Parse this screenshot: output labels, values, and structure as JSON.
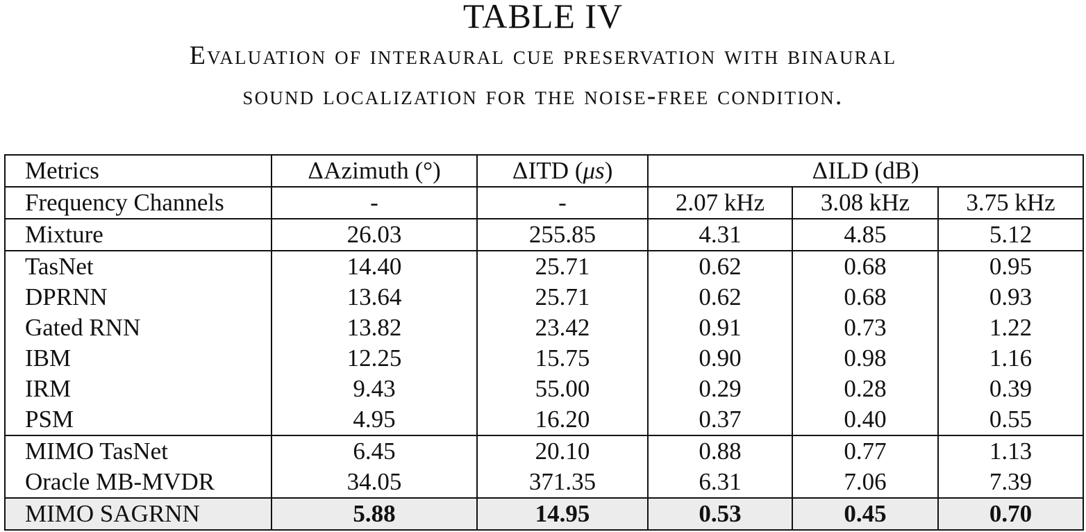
{
  "caption": {
    "title": "TABLE IV",
    "line1": "Evaluation of interaural cue preservation with binaural",
    "line2": "sound localization for the noise-free condition."
  },
  "table": {
    "header1": {
      "metrics": "Metrics",
      "azimuth_delta": "Δ",
      "azimuth": "Azimuth (°)",
      "itd_delta": "Δ",
      "itd_pre": "ITD (",
      "itd_unit": "μs",
      "itd_post": ")",
      "ild_delta": "Δ",
      "ild": "ILD (dB)"
    },
    "header2": {
      "label": "Frequency Channels",
      "azimuth": "-",
      "itd": "-",
      "f1": "2.07 kHz",
      "f2": "3.08 kHz",
      "f3": "3.75 kHz"
    },
    "rows": [
      {
        "name": "Mixture",
        "azimuth": "26.03",
        "itd": "255.85",
        "ild1": "4.31",
        "ild2": "4.85",
        "ild3": "5.12"
      },
      {
        "name": "TasNet",
        "azimuth": "14.40",
        "itd": "25.71",
        "ild1": "0.62",
        "ild2": "0.68",
        "ild3": "0.95"
      },
      {
        "name": "DPRNN",
        "azimuth": "13.64",
        "itd": "25.71",
        "ild1": "0.62",
        "ild2": "0.68",
        "ild3": "0.93"
      },
      {
        "name": "Gated RNN",
        "azimuth": "13.82",
        "itd": "23.42",
        "ild1": "0.91",
        "ild2": "0.73",
        "ild3": "1.22"
      },
      {
        "name": "IBM",
        "azimuth": "12.25",
        "itd": "15.75",
        "ild1": "0.90",
        "ild2": "0.98",
        "ild3": "1.16"
      },
      {
        "name": "IRM",
        "azimuth": "9.43",
        "itd": "55.00",
        "ild1": "0.29",
        "ild2": "0.28",
        "ild3": "0.39"
      },
      {
        "name": "PSM",
        "azimuth": "4.95",
        "itd": "16.20",
        "ild1": "0.37",
        "ild2": "0.40",
        "ild3": "0.55"
      },
      {
        "name": "MIMO TasNet",
        "azimuth": "6.45",
        "itd": "20.10",
        "ild1": "0.88",
        "ild2": "0.77",
        "ild3": "1.13"
      },
      {
        "name": "Oracle MB-MVDR",
        "azimuth": "34.05",
        "itd": "371.35",
        "ild1": "6.31",
        "ild2": "7.06",
        "ild3": "7.39"
      },
      {
        "name": "MIMO SAGRNN",
        "azimuth": "5.88",
        "itd": "14.95",
        "ild1": "0.53",
        "ild2": "0.45",
        "ild3": "0.70"
      }
    ]
  }
}
